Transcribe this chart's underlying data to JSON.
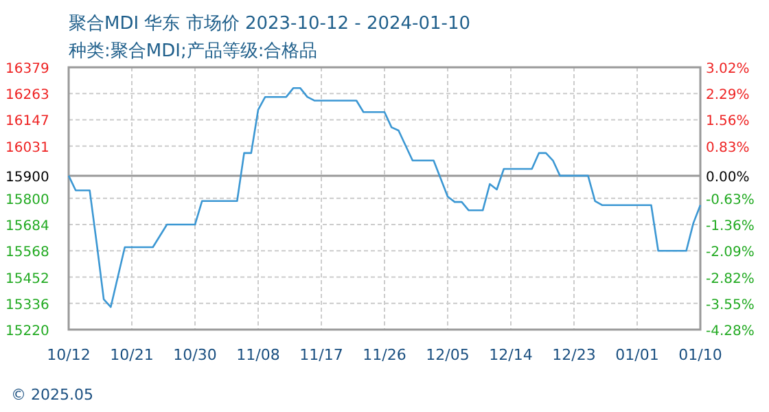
{
  "chart_data": {
    "type": "line",
    "title": "聚合MDI 华东 市场价 2023-10-12 - 2024-01-10",
    "subtitle": "种类:聚合MDI;产品等级:合格品",
    "annotations": [
      "© 2025.05"
    ],
    "x": [
      "2023-10-12",
      "2023-10-13",
      "2023-10-15",
      "2023-10-16",
      "2023-10-17",
      "2023-10-18",
      "2023-10-20",
      "2023-10-24",
      "2023-10-26",
      "2023-10-30",
      "2023-10-31",
      "2023-11-05",
      "2023-11-06",
      "2023-11-07",
      "2023-11-08",
      "2023-11-09",
      "2023-11-12",
      "2023-11-13",
      "2023-11-14",
      "2023-11-15",
      "2023-11-16",
      "2023-11-22",
      "2023-11-23",
      "2023-11-26",
      "2023-11-27",
      "2023-11-28",
      "2023-11-30",
      "2023-12-03",
      "2023-12-05",
      "2023-12-06",
      "2023-12-07",
      "2023-12-08",
      "2023-12-10",
      "2023-12-11",
      "2023-12-12",
      "2023-12-13",
      "2023-12-17",
      "2023-12-18",
      "2023-12-19",
      "2023-12-20",
      "2023-12-21",
      "2023-12-25",
      "2023-12-26",
      "2023-12-27",
      "2024-01-03",
      "2024-01-04",
      "2024-01-08",
      "2024-01-09",
      "2024-01-10"
    ],
    "series": [
      {
        "color": "#3b97d3",
        "values": [
          15900,
          15835,
          15835,
          15600,
          15354,
          15320,
          15584,
          15584,
          15684,
          15684,
          15788,
          15788,
          16000,
          16000,
          16191,
          16248,
          16248,
          16287,
          16287,
          16248,
          16232,
          16232,
          16181,
          16181,
          16114,
          16100,
          15967,
          15967,
          15808,
          15784,
          15784,
          15747,
          15747,
          15863,
          15839,
          15930,
          15930,
          16000,
          16000,
          15967,
          15900,
          15900,
          15788,
          15770,
          15770,
          15568,
          15568,
          15690,
          15770
        ]
      }
    ],
    "xlim": [
      "2023-10-12",
      "2024-01-10"
    ],
    "xticks": [
      {
        "value": "2023-10-12",
        "label": "10/12"
      },
      {
        "value": "2023-10-21",
        "label": "10/21"
      },
      {
        "value": "2023-10-30",
        "label": "10/30"
      },
      {
        "value": "2023-11-08",
        "label": "11/08"
      },
      {
        "value": "2023-11-17",
        "label": "11/17"
      },
      {
        "value": "2023-11-26",
        "label": "11/26"
      },
      {
        "value": "2023-12-05",
        "label": "12/05"
      },
      {
        "value": "2023-12-14",
        "label": "12/14"
      },
      {
        "value": "2023-12-23",
        "label": "12/23"
      },
      {
        "value": "2024-01-01",
        "label": "01/01"
      },
      {
        "value": "2024-01-10",
        "label": "01/10"
      }
    ],
    "ylim": [
      15220,
      16379
    ],
    "yticks": [
      16379,
      16263,
      16147,
      16031,
      15900,
      15800,
      15684,
      15568,
      15452,
      15336,
      15220
    ],
    "y2lim": [
      -4.28,
      3.02
    ],
    "y2ticks": [
      {
        "value": 3.02,
        "label": "3.02%"
      },
      {
        "value": 2.29,
        "label": "2.29%"
      },
      {
        "value": 1.56,
        "label": "1.56%"
      },
      {
        "value": 0.83,
        "label": "0.83%"
      },
      {
        "value": 0,
        "label": "0.00%"
      },
      {
        "value": -0.63,
        "label": "-0.63%"
      },
      {
        "value": -1.36,
        "label": "-1.36%"
      },
      {
        "value": -2.09,
        "label": "-2.09%"
      },
      {
        "value": -2.82,
        "label": "-2.82%"
      },
      {
        "value": -3.55,
        "label": "-3.55%"
      },
      {
        "value": -4.28,
        "label": "-4.28%"
      }
    ],
    "ref_lines": [
      {
        "axis": "y",
        "value": 15900,
        "color": "#999999"
      }
    ],
    "grid": true,
    "line_style": "solid"
  }
}
